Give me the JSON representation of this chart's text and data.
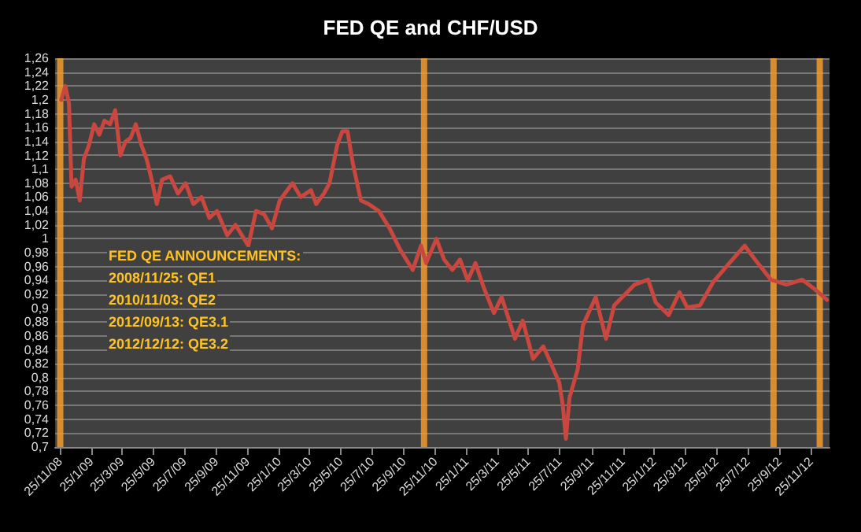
{
  "chart_data": {
    "type": "line",
    "title": "FED QE and CHF/USD",
    "x": [
      "2008-11-27",
      "2008-12-05",
      "2008-12-12",
      "2008-12-17",
      "2008-12-25",
      "2009-01-02",
      "2009-01-10",
      "2009-01-20",
      "2009-01-30",
      "2009-02-09",
      "2009-02-19",
      "2009-03-02",
      "2009-03-12",
      "2009-03-22",
      "2009-04-01",
      "2009-04-11",
      "2009-04-21",
      "2009-05-02",
      "2009-05-12",
      "2009-05-22",
      "2009-06-01",
      "2009-06-11",
      "2009-06-27",
      "2009-07-12",
      "2009-07-27",
      "2009-08-11",
      "2009-08-27",
      "2009-09-11",
      "2009-09-26",
      "2009-10-16",
      "2009-11-01",
      "2009-11-26",
      "2009-12-11",
      "2009-12-27",
      "2010-01-11",
      "2010-01-26",
      "2010-02-20",
      "2010-03-08",
      "2010-03-28",
      "2010-04-07",
      "2010-04-22",
      "2010-05-03",
      "2010-05-18",
      "2010-05-28",
      "2010-06-07",
      "2010-06-17",
      "2010-07-03",
      "2010-07-18",
      "2010-08-07",
      "2010-08-28",
      "2010-09-17",
      "2010-10-12",
      "2010-10-28",
      "2010-11-07",
      "2010-11-27",
      "2010-12-12",
      "2010-12-28",
      "2011-01-12",
      "2011-01-27",
      "2011-02-11",
      "2011-02-27",
      "2011-03-19",
      "2011-04-03",
      "2011-04-29",
      "2011-05-14",
      "2011-06-03",
      "2011-06-23",
      "2011-07-04",
      "2011-07-24",
      "2011-07-31",
      "2011-08-06",
      "2011-08-13",
      "2011-08-29",
      "2011-09-08",
      "2011-10-03",
      "2011-10-23",
      "2011-11-08",
      "2011-11-28",
      "2011-12-18",
      "2012-01-13",
      "2012-01-28",
      "2012-02-22",
      "2012-03-14",
      "2012-03-29",
      "2012-04-23",
      "2012-05-19",
      "2012-06-18",
      "2012-07-19",
      "2012-08-08",
      "2012-09-08",
      "2012-10-08",
      "2012-11-08",
      "2012-12-03",
      "2012-12-26"
    ],
    "series": [
      {
        "color": "#c9473f",
        "values": [
          1.2,
          1.22,
          1.195,
          1.075,
          1.085,
          1.055,
          1.115,
          1.135,
          1.165,
          1.15,
          1.17,
          1.165,
          1.185,
          1.12,
          1.14,
          1.145,
          1.165,
          1.135,
          1.115,
          1.085,
          1.05,
          1.085,
          1.09,
          1.065,
          1.08,
          1.05,
          1.06,
          1.03,
          1.04,
          1.005,
          1.02,
          0.99,
          1.04,
          1.035,
          1.015,
          1.055,
          1.08,
          1.06,
          1.07,
          1.05,
          1.065,
          1.08,
          1.135,
          1.155,
          1.155,
          1.11,
          1.055,
          1.05,
          1.04,
          1.015,
          0.985,
          0.955,
          0.99,
          0.965,
          1.0,
          0.97,
          0.955,
          0.97,
          0.94,
          0.965,
          0.93,
          0.893,
          0.916,
          0.856,
          0.882,
          0.827,
          0.845,
          0.827,
          0.793,
          0.76,
          0.712,
          0.771,
          0.812,
          0.875,
          0.916,
          0.856,
          0.904,
          0.919,
          0.934,
          0.941,
          0.908,
          0.89,
          0.923,
          0.901,
          0.904,
          0.938,
          0.964,
          0.99,
          0.97,
          0.941,
          0.934,
          0.941,
          0.927,
          0.912
        ]
      }
    ],
    "xlim": [
      "2008-11-15",
      "2012-12-31"
    ],
    "xticks": [
      {
        "value": "2008-11-25",
        "label": "25/11/08"
      },
      {
        "value": "2009-01-25",
        "label": "25/1/09"
      },
      {
        "value": "2009-03-25",
        "label": "25/3/09"
      },
      {
        "value": "2009-05-25",
        "label": "25/5/09"
      },
      {
        "value": "2009-07-25",
        "label": "25/7/09"
      },
      {
        "value": "2009-09-25",
        "label": "25/9/09"
      },
      {
        "value": "2009-11-25",
        "label": "25/11/09"
      },
      {
        "value": "2010-01-25",
        "label": "25/1/10"
      },
      {
        "value": "2010-03-25",
        "label": "25/3/10"
      },
      {
        "value": "2010-05-25",
        "label": "25/5/10"
      },
      {
        "value": "2010-07-25",
        "label": "25/7/10"
      },
      {
        "value": "2010-09-25",
        "label": "25/9/10"
      },
      {
        "value": "2010-11-25",
        "label": "25/11/10"
      },
      {
        "value": "2011-01-25",
        "label": "25/1/11"
      },
      {
        "value": "2011-03-25",
        "label": "25/3/11"
      },
      {
        "value": "2011-05-25",
        "label": "25/5/11"
      },
      {
        "value": "2011-07-25",
        "label": "25/7/11"
      },
      {
        "value": "2011-09-25",
        "label": "25/9/11"
      },
      {
        "value": "2011-11-25",
        "label": "25/11/11"
      },
      {
        "value": "2012-01-25",
        "label": "25/1/12"
      },
      {
        "value": "2012-03-25",
        "label": "25/3/12"
      },
      {
        "value": "2012-05-25",
        "label": "25/5/12"
      },
      {
        "value": "2012-07-25",
        "label": "25/7/12"
      },
      {
        "value": "2012-09-25",
        "label": "25/9/12"
      },
      {
        "value": "2012-11-25",
        "label": "25/11/12"
      }
    ],
    "ylim": [
      0.7,
      1.26
    ],
    "yticks": [
      {
        "value": 0.7,
        "label": "0,7"
      },
      {
        "value": 0.72,
        "label": "0,72"
      },
      {
        "value": 0.74,
        "label": "0,74"
      },
      {
        "value": 0.76,
        "label": "0,76"
      },
      {
        "value": 0.78,
        "label": "0,78"
      },
      {
        "value": 0.8,
        "label": "0,8"
      },
      {
        "value": 0.82,
        "label": "0,82"
      },
      {
        "value": 0.84,
        "label": "0,84"
      },
      {
        "value": 0.86,
        "label": "0,86"
      },
      {
        "value": 0.88,
        "label": "0,88"
      },
      {
        "value": 0.9,
        "label": "0,9"
      },
      {
        "value": 0.92,
        "label": "0,92"
      },
      {
        "value": 0.94,
        "label": "0,94"
      },
      {
        "value": 0.96,
        "label": "0,96"
      },
      {
        "value": 0.98,
        "label": "0,98"
      },
      1,
      {
        "value": 1.02,
        "label": "1,02"
      },
      {
        "value": 1.04,
        "label": "1,04"
      },
      {
        "value": 1.06,
        "label": "1,06"
      },
      {
        "value": 1.08,
        "label": "1,08"
      },
      {
        "value": 1.1,
        "label": "1,1"
      },
      {
        "value": 1.12,
        "label": "1,12"
      },
      {
        "value": 1.14,
        "label": "1,14"
      },
      {
        "value": 1.16,
        "label": "1,16"
      },
      {
        "value": 1.18,
        "label": "1,18"
      },
      {
        "value": 1.2,
        "label": "1,2"
      },
      {
        "value": 1.22,
        "label": "1,22"
      },
      {
        "value": 1.24,
        "label": "1,24"
      },
      {
        "value": 1.26,
        "label": "1,26"
      }
    ],
    "grid": "y",
    "marker": "none",
    "line_style": "solid",
    "ref_lines": [
      {
        "axis": "x",
        "value": "2008-11-25",
        "color": "#f29a2e"
      },
      {
        "axis": "x",
        "value": "2010-11-03",
        "color": "#f29a2e"
      },
      {
        "axis": "x",
        "value": "2012-09-13",
        "color": "#f29a2e"
      },
      {
        "axis": "x",
        "value": "2012-12-12",
        "color": "#f29a2e"
      }
    ],
    "annotations": [
      "FED QE ANNOUNCEMENTS:",
      "2008/11/25: QE1",
      "2010/11/03: QE2",
      "2012/09/13: QE3.1",
      "2012/12/12: QE3.2"
    ]
  }
}
